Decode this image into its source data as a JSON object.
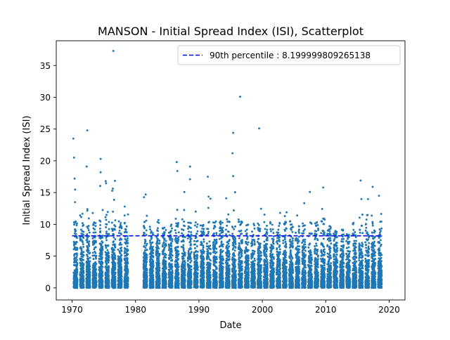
{
  "chart_data": {
    "type": "scatter",
    "title": "MANSON - Initial Spread Index (ISI), Scatterplot",
    "xlabel": "Date",
    "ylabel": "Initial Spread Index (ISI)",
    "xlim": [
      1967.5,
      2022.5
    ],
    "ylim": [
      -1.9,
      38.9
    ],
    "x_ticks": [
      1970,
      1980,
      1990,
      2000,
      2010,
      2020
    ],
    "x_tick_labels": [
      "1970",
      "1980",
      "1990",
      "2000",
      "2010",
      "2020"
    ],
    "y_ticks": [
      0,
      5,
      10,
      15,
      20,
      25,
      30,
      35
    ],
    "y_tick_labels": [
      "0",
      "5",
      "10",
      "15",
      "20",
      "25",
      "30",
      "35"
    ],
    "grid": false,
    "legend_position": "upper right",
    "reference_line": {
      "label": "90th percentile : 8.199999809265138",
      "value": 8.199999809265138,
      "color": "#0000ff",
      "style": "dashed"
    },
    "series": [
      {
        "color": "#1f77b4",
        "marker": "dot",
        "season_years": [
          1970,
          1971,
          1972,
          1973,
          1974,
          1975,
          1976,
          1977,
          1978,
          1981,
          1982,
          1983,
          1984,
          1985,
          1986,
          1987,
          1988,
          1989,
          1990,
          1991,
          1992,
          1993,
          1994,
          1995,
          1996,
          1997,
          1998,
          1999,
          2000,
          2001,
          2002,
          2003,
          2004,
          2005,
          2006,
          2007,
          2008,
          2009,
          2010,
          2011,
          2012,
          2013,
          2014,
          2015,
          2016,
          2017,
          2018
        ],
        "season_peaks": [
          23.5,
          15.0,
          24.8,
          15.5,
          20.3,
          17.0,
          37.3,
          12.0,
          12.8,
          14.7,
          10.1,
          11.3,
          9.9,
          10.5,
          19.8,
          15.3,
          19.1,
          14.4,
          10.5,
          17.5,
          11.0,
          13.0,
          14.1,
          24.4,
          30.1,
          11.2,
          10.5,
          25.1,
          12.3,
          11.5,
          13.2,
          13.0,
          11.4,
          11.4,
          13.9,
          15.1,
          13.5,
          15.8,
          10.4,
          9.5,
          9.8,
          9.5,
          11.8,
          16.9,
          14.7,
          15.9,
          14.5
        ],
        "highlight_points": [
          {
            "x": 1970.2,
            "y": 23.5
          },
          {
            "x": 1970.3,
            "y": 20.5
          },
          {
            "x": 1970.4,
            "y": 17.2
          },
          {
            "x": 1972.4,
            "y": 24.8
          },
          {
            "x": 1972.3,
            "y": 19.1
          },
          {
            "x": 1974.5,
            "y": 20.3
          },
          {
            "x": 1974.5,
            "y": 18.2
          },
          {
            "x": 1975.3,
            "y": 16.8
          },
          {
            "x": 1976.5,
            "y": 37.3
          },
          {
            "x": 1978.3,
            "y": 12.8
          },
          {
            "x": 1981.6,
            "y": 14.7
          },
          {
            "x": 1986.5,
            "y": 19.8
          },
          {
            "x": 1986.6,
            "y": 18.4
          },
          {
            "x": 1987.7,
            "y": 15.1
          },
          {
            "x": 1988.6,
            "y": 19.1
          },
          {
            "x": 1988.6,
            "y": 17.1
          },
          {
            "x": 1991.4,
            "y": 17.5
          },
          {
            "x": 1994.3,
            "y": 14.1
          },
          {
            "x": 1995.4,
            "y": 24.4
          },
          {
            "x": 1995.3,
            "y": 21.2
          },
          {
            "x": 1995.4,
            "y": 17.6
          },
          {
            "x": 1996.5,
            "y": 30.1
          },
          {
            "x": 1999.5,
            "y": 25.1
          },
          {
            "x": 2005.5,
            "y": 11.4
          },
          {
            "x": 2007.5,
            "y": 15.1
          },
          {
            "x": 2009.6,
            "y": 15.8
          },
          {
            "x": 2015.5,
            "y": 16.9
          },
          {
            "x": 2017.4,
            "y": 15.9
          },
          {
            "x": 2018.4,
            "y": 14.5
          }
        ]
      }
    ]
  }
}
